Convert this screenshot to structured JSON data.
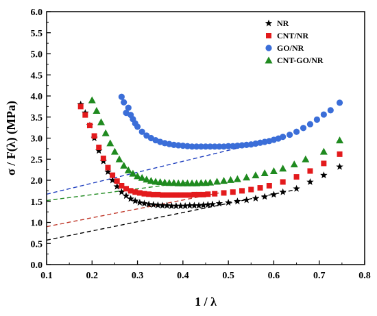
{
  "chart_data": {
    "type": "scatter",
    "xlabel": "1 / λ",
    "ylabel": "σ / F(λ) (MPa)",
    "xlim": [
      0.1,
      0.8
    ],
    "ylim": [
      0.0,
      6.0
    ],
    "x_ticks": [
      "0.1",
      "0.2",
      "0.3",
      "0.4",
      "0.5",
      "0.6",
      "0.7",
      "0.8"
    ],
    "y_ticks": [
      "0.0",
      "0.5",
      "1.0",
      "1.5",
      "2.0",
      "2.5",
      "3.0",
      "3.5",
      "4.0",
      "4.5",
      "5.0",
      "5.5",
      "6.0"
    ],
    "grid": false,
    "legend_position": "top-right",
    "series": [
      {
        "name": "NR",
        "marker": "star",
        "color": "#000000",
        "x": [
          0.175,
          0.185,
          0.195,
          0.205,
          0.215,
          0.225,
          0.235,
          0.245,
          0.255,
          0.265,
          0.275,
          0.285,
          0.295,
          0.305,
          0.315,
          0.325,
          0.335,
          0.345,
          0.355,
          0.365,
          0.375,
          0.385,
          0.395,
          0.405,
          0.415,
          0.425,
          0.435,
          0.445,
          0.455,
          0.465,
          0.48,
          0.5,
          0.52,
          0.54,
          0.56,
          0.58,
          0.6,
          0.62,
          0.65,
          0.68,
          0.71,
          0.745
        ],
        "y": [
          3.8,
          3.6,
          3.3,
          3.0,
          2.7,
          2.45,
          2.2,
          2.0,
          1.85,
          1.72,
          1.63,
          1.56,
          1.51,
          1.47,
          1.45,
          1.43,
          1.42,
          1.41,
          1.4,
          1.4,
          1.39,
          1.39,
          1.39,
          1.39,
          1.4,
          1.4,
          1.4,
          1.41,
          1.42,
          1.43,
          1.45,
          1.47,
          1.5,
          1.53,
          1.57,
          1.61,
          1.66,
          1.72,
          1.8,
          1.96,
          2.12,
          2.32
        ]
      },
      {
        "name": "CNT/NR",
        "marker": "square",
        "color": "#e31a1c",
        "x": [
          0.175,
          0.185,
          0.195,
          0.205,
          0.215,
          0.225,
          0.235,
          0.245,
          0.255,
          0.265,
          0.275,
          0.285,
          0.295,
          0.305,
          0.315,
          0.325,
          0.335,
          0.345,
          0.355,
          0.365,
          0.375,
          0.385,
          0.395,
          0.405,
          0.415,
          0.425,
          0.435,
          0.445,
          0.455,
          0.47,
          0.49,
          0.51,
          0.53,
          0.55,
          0.57,
          0.59,
          0.62,
          0.65,
          0.68,
          0.71,
          0.745
        ],
        "y": [
          3.75,
          3.55,
          3.3,
          3.05,
          2.78,
          2.52,
          2.3,
          2.12,
          1.98,
          1.87,
          1.8,
          1.75,
          1.72,
          1.7,
          1.68,
          1.67,
          1.66,
          1.66,
          1.65,
          1.65,
          1.65,
          1.65,
          1.65,
          1.65,
          1.65,
          1.66,
          1.66,
          1.66,
          1.67,
          1.68,
          1.7,
          1.72,
          1.75,
          1.78,
          1.82,
          1.87,
          1.96,
          2.08,
          2.22,
          2.4,
          2.62
        ]
      },
      {
        "name": "GO/NR",
        "marker": "circle",
        "color": "#3b6ed8",
        "x": [
          0.265,
          0.27,
          0.275,
          0.28,
          0.285,
          0.29,
          0.295,
          0.3,
          0.31,
          0.32,
          0.33,
          0.34,
          0.35,
          0.36,
          0.37,
          0.38,
          0.39,
          0.4,
          0.41,
          0.42,
          0.43,
          0.44,
          0.45,
          0.46,
          0.47,
          0.48,
          0.49,
          0.5,
          0.51,
          0.52,
          0.53,
          0.54,
          0.55,
          0.56,
          0.57,
          0.58,
          0.59,
          0.6,
          0.61,
          0.62,
          0.635,
          0.65,
          0.665,
          0.68,
          0.695,
          0.71,
          0.725,
          0.745
        ],
        "y": [
          3.98,
          3.85,
          3.6,
          3.72,
          3.55,
          3.45,
          3.35,
          3.27,
          3.15,
          3.06,
          3.0,
          2.95,
          2.91,
          2.88,
          2.86,
          2.84,
          2.83,
          2.82,
          2.81,
          2.8,
          2.8,
          2.8,
          2.8,
          2.8,
          2.8,
          2.8,
          2.8,
          2.81,
          2.81,
          2.82,
          2.83,
          2.84,
          2.85,
          2.87,
          2.89,
          2.91,
          2.93,
          2.96,
          2.99,
          3.03,
          3.08,
          3.15,
          3.24,
          3.33,
          3.44,
          3.56,
          3.66,
          3.84
        ]
      },
      {
        "name": "CNT-GO/NR",
        "marker": "triangle",
        "color": "#1f8a1f",
        "x": [
          0.2,
          0.21,
          0.22,
          0.23,
          0.24,
          0.25,
          0.26,
          0.27,
          0.28,
          0.29,
          0.3,
          0.31,
          0.32,
          0.33,
          0.34,
          0.35,
          0.36,
          0.37,
          0.38,
          0.39,
          0.4,
          0.41,
          0.42,
          0.43,
          0.44,
          0.45,
          0.46,
          0.475,
          0.49,
          0.505,
          0.52,
          0.54,
          0.56,
          0.58,
          0.6,
          0.62,
          0.645,
          0.67,
          0.71,
          0.745
        ],
        "y": [
          3.9,
          3.65,
          3.38,
          3.12,
          2.88,
          2.68,
          2.5,
          2.35,
          2.24,
          2.16,
          2.1,
          2.06,
          2.02,
          1.99,
          1.97,
          1.96,
          1.95,
          1.94,
          1.94,
          1.93,
          1.93,
          1.93,
          1.93,
          1.93,
          1.94,
          1.94,
          1.95,
          1.97,
          1.99,
          2.01,
          2.03,
          2.07,
          2.12,
          2.17,
          2.22,
          2.28,
          2.38,
          2.5,
          2.68,
          2.95
        ]
      }
    ],
    "fit_lines": [
      {
        "series": "NR",
        "color": "#000000",
        "x": [
          0.1,
          0.65
        ],
        "y": [
          0.58,
          1.78
        ]
      },
      {
        "series": "CNT/NR",
        "color": "#c0392b",
        "x": [
          0.1,
          0.48
        ],
        "y": [
          0.9,
          1.7
        ]
      },
      {
        "series": "GO/NR",
        "color": "#1f3fbf",
        "x": [
          0.1,
          0.6
        ],
        "y": [
          1.67,
          2.97
        ]
      },
      {
        "series": "CNT-GO/NR",
        "color": "#1f8a1f",
        "x": [
          0.1,
          0.41
        ],
        "y": [
          1.52,
          1.95
        ]
      }
    ]
  }
}
